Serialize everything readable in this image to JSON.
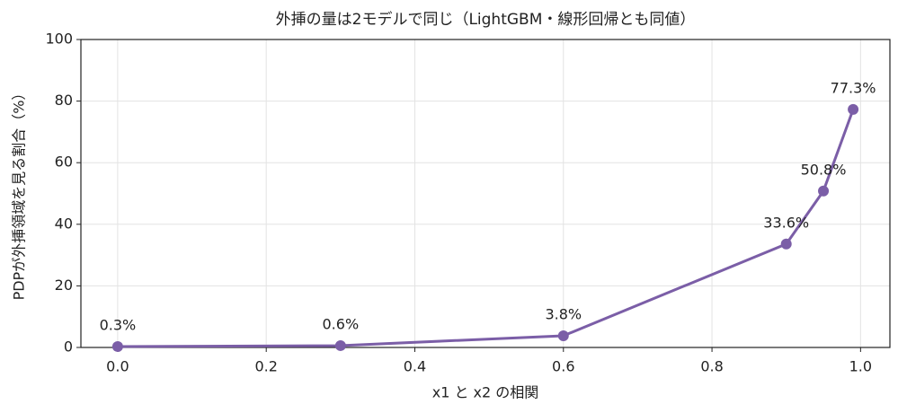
{
  "chart_data": {
    "type": "line",
    "title": "外挿の量は2モデルで同じ（LightGBM・線形回帰とも同値）",
    "xlabel": "x1 と x2 の相関",
    "ylabel": "PDPが外挿領域を見る割合（%）",
    "x": [
      0,
      0.3,
      0.6,
      0.9,
      0.95,
      0.99
    ],
    "series": [
      {
        "color": "#7b5ea7",
        "values": [
          0.3,
          0.6,
          3.8,
          33.6,
          50.8,
          77.3
        ],
        "value_labels": [
          "0.3%",
          "0.6%",
          "3.8%",
          "33.6%",
          "50.8%",
          "77.3%"
        ]
      }
    ],
    "xlim": [
      -0.0495,
      1.0395
    ],
    "ylim": [
      0,
      100
    ],
    "xticks": [
      {
        "value": 0,
        "label": "0.0"
      },
      0.2,
      0.4,
      0.6,
      0.8,
      {
        "value": 1,
        "label": "1.0"
      }
    ],
    "yticks": [
      0,
      20,
      40,
      60,
      80,
      100
    ],
    "grid": true
  }
}
